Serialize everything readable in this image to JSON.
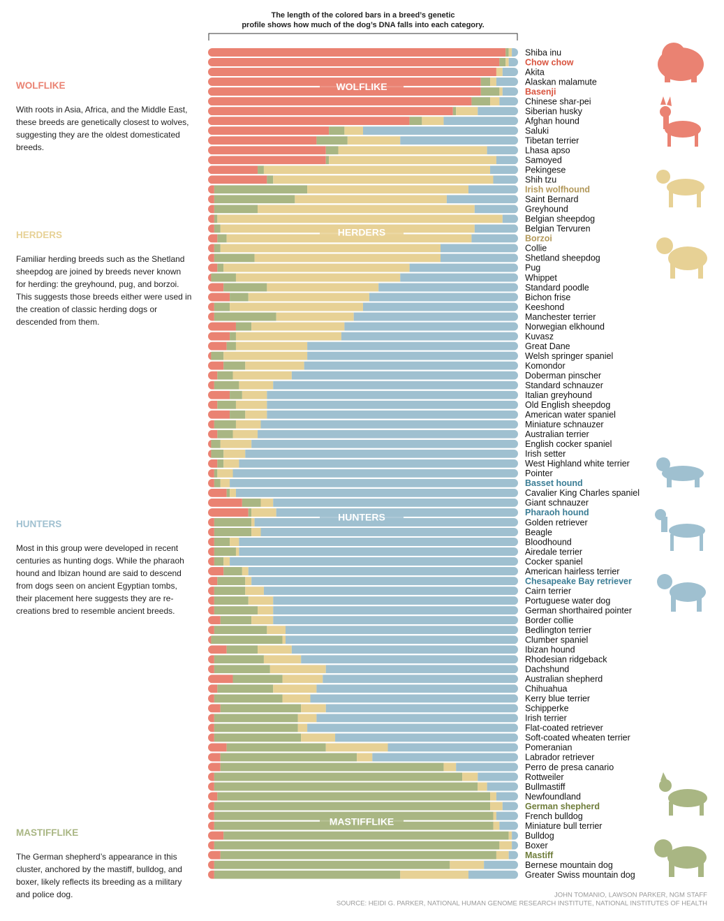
{
  "chart_data": {
    "type": "stacked-bar",
    "orientation": "horizontal",
    "note": "The length of the colored bars in a breed’s genetic profile shows how much of the dog’s DNA falls into each category.",
    "xlim": [
      0,
      100
    ],
    "categories": [
      "Shiba inu",
      "Chow chow",
      "Akita",
      "Alaskan malamute",
      "Basenji",
      "Chinese shar-pei",
      "Siberian husky",
      "Afghan hound",
      "Saluki",
      "Tibetan terrier",
      "Lhasa apso",
      "Samoyed",
      "Pekingese",
      "Shih tzu",
      "Irish wolfhound",
      "Saint Bernard",
      "Greyhound",
      "Belgian sheepdog",
      "Belgian Tervuren",
      "Borzoi",
      "Collie",
      "Shetland sheepdog",
      "Pug",
      "Whippet",
      "Standard poodle",
      "Bichon frise",
      "Keeshond",
      "Manchester terrier",
      "Norwegian elkhound",
      "Kuvasz",
      "Great Dane",
      "Welsh springer spaniel",
      "Komondor",
      "Doberman pinscher",
      "Standard schnauzer",
      "Italian greyhound",
      "Old English sheepdog",
      "American water spaniel",
      "Miniature schnauzer",
      "Australian terrier",
      "English cocker spaniel",
      "Irish setter",
      "West Highland white terrier",
      "Pointer",
      "Basset hound",
      "Cavalier King Charles spaniel",
      "Giant schnauzer",
      "Pharaoh hound",
      "Golden retriever",
      "Beagle",
      "Bloodhound",
      "Airedale terrier",
      "Cocker spaniel",
      "American hairless terrier",
      "Chesapeake Bay retriever",
      "Cairn terrier",
      "Portuguese water dog",
      "German shorthaired pointer",
      "Border collie",
      "Bedlington terrier",
      "Clumber spaniel",
      "Ibizan hound",
      "Rhodesian ridgeback",
      "Dachshund",
      "Australian shepherd",
      "Chihuahua",
      "Kerry blue terrier",
      "Schipperke",
      "Irish terrier",
      "Flat-coated retriever",
      "Soft-coated wheaten terrier",
      "Pomeranian",
      "Labrador retriever",
      "Perro de presa canario",
      "Rottweiler",
      "Bullmastiff",
      "Newfoundland",
      "German shepherd",
      "French bulldog",
      "Miniature bull terrier",
      "Bulldog",
      "Boxer",
      "Mastiff",
      "Bernese mountain dog",
      "Greater Swiss mountain dog"
    ],
    "series": [
      {
        "name": "WOLFLIKE",
        "color": "#ea8272",
        "label_color": "#d9543f",
        "highlighted": [
          1,
          4
        ],
        "description": "With roots in Asia, Africa, and the Middle East, these breeds are genetically closest to wolves, suggesting they are the oldest domesticated breeds.",
        "values": [
          96,
          94,
          93,
          88,
          88,
          85,
          79,
          65,
          39,
          35,
          38,
          38,
          16,
          19,
          2,
          2,
          2,
          2,
          2,
          3,
          2,
          2,
          3,
          1,
          5,
          7,
          2,
          2,
          9,
          7,
          6,
          1,
          5,
          3,
          2,
          7,
          3,
          7,
          2,
          3,
          1,
          1,
          3,
          2,
          2,
          6,
          11,
          13,
          2,
          2,
          2,
          2,
          2,
          5,
          3,
          2,
          2,
          2,
          4,
          2,
          1,
          6,
          2,
          2,
          8,
          3,
          2,
          4,
          2,
          2,
          2,
          6,
          4,
          4,
          2,
          2,
          3,
          2,
          2,
          2,
          5,
          2,
          4,
          2,
          2
        ]
      },
      {
        "name": "MASTIFFLIKE",
        "color": "#a9b683",
        "label_color": "#6f7d3a",
        "highlighted": [
          77,
          82
        ],
        "description": "The German shepherd’s appearance in this cluster, anchored by the mastiff, bulldog, and boxer, likely reflects its breeding as a military and police dog.",
        "values": [
          1,
          2,
          0,
          3,
          6,
          6,
          1,
          4,
          5,
          10,
          4,
          1,
          2,
          2,
          30,
          26,
          14,
          1,
          2,
          3,
          2,
          13,
          2,
          8,
          14,
          6,
          5,
          20,
          5,
          2,
          3,
          4,
          7,
          5,
          8,
          4,
          6,
          5,
          7,
          5,
          3,
          4,
          2,
          1,
          2,
          1,
          6,
          1,
          12,
          12,
          5,
          7,
          3,
          6,
          9,
          10,
          11,
          14,
          10,
          17,
          23,
          10,
          16,
          18,
          16,
          18,
          22,
          26,
          27,
          27,
          28,
          32,
          44,
          72,
          80,
          85,
          88,
          89,
          90,
          90,
          92,
          92,
          89,
          76,
          60
        ]
      },
      {
        "name": "HERDERS",
        "color": "#e7d195",
        "label_color": "#b2985a",
        "highlighted": [
          14,
          19
        ],
        "description": "Familiar herding breeds such as the Shetland sheepdog are joined by breeds never known for herding: the greyhound, pug, and borzoi. This suggests those breeds either were used in the creation of classic herding dogs or descended from them.",
        "values": [
          1,
          1,
          2,
          2,
          1,
          3,
          7,
          7,
          6,
          17,
          48,
          54,
          73,
          71,
          52,
          49,
          70,
          92,
          82,
          79,
          71,
          60,
          60,
          53,
          36,
          39,
          43,
          25,
          30,
          34,
          23,
          27,
          19,
          19,
          11,
          8,
          10,
          7,
          8,
          8,
          10,
          7,
          5,
          5,
          3,
          2,
          4,
          8,
          1,
          3,
          3,
          1,
          2,
          2,
          2,
          6,
          8,
          5,
          7,
          6,
          1,
          11,
          12,
          18,
          13,
          14,
          9,
          8,
          6,
          3,
          11,
          20,
          5,
          4,
          5,
          3,
          2,
          4,
          1,
          2,
          1,
          4,
          4,
          11,
          22
        ]
      },
      {
        "name": "HUNTERS",
        "color": "#9fc0d0",
        "label_color": "#3b7d95",
        "highlighted": [
          44,
          47,
          54
        ],
        "description": "Most in this group were developed in recent centuries as hunting dogs. While the pharaoh hound and Ibizan hound are said to descend from dogs seen on ancient Egyptian tombs, their placement here suggests they are re-creations bred to resemble ancient breeds.",
        "values": [
          2,
          3,
          5,
          7,
          5,
          6,
          13,
          24,
          50,
          38,
          10,
          7,
          9,
          8,
          16,
          23,
          14,
          5,
          14,
          15,
          25,
          25,
          35,
          38,
          45,
          48,
          50,
          53,
          56,
          57,
          68,
          68,
          69,
          73,
          79,
          81,
          81,
          81,
          83,
          84,
          86,
          88,
          90,
          92,
          93,
          91,
          79,
          78,
          85,
          83,
          90,
          90,
          93,
          87,
          86,
          82,
          79,
          79,
          79,
          75,
          75,
          73,
          70,
          62,
          63,
          65,
          67,
          62,
          65,
          68,
          59,
          42,
          47,
          20,
          13,
          10,
          7,
          5,
          7,
          6,
          2,
          2,
          3,
          11,
          16
        ]
      }
    ],
    "credits": [
      "JOHN TOMANIO, LAWSON PARKER, NGM STAFF",
      "SOURCE: HEIDI G. PARKER, NATIONAL HUMAN GENOME RESEARCH INSTITUTE, NATIONAL INSTITUTES OF HEALTH"
    ]
  }
}
